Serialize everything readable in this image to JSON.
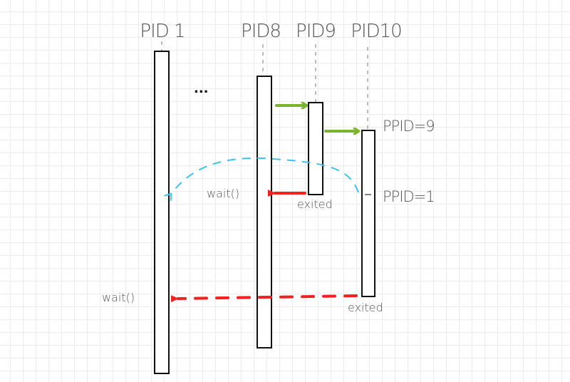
{
  "processes": [
    {
      "label": "PID 1"
    },
    {
      "label": "PID8"
    },
    {
      "label": "PID9"
    },
    {
      "label": "PID10"
    }
  ],
  "ellipsis": "...",
  "annotations": {
    "ppid_before": "PPID=9",
    "ppid_after": "PPID=1",
    "wait_pid8": "wait()",
    "wait_pid1": "wait()",
    "exited_pid9": "exited",
    "exited_pid10": "exited"
  },
  "colors": {
    "fork_arrow": "#7ab32e",
    "exit_arrow": "#f22020",
    "reparent_arrow": "#3cc4ef"
  }
}
